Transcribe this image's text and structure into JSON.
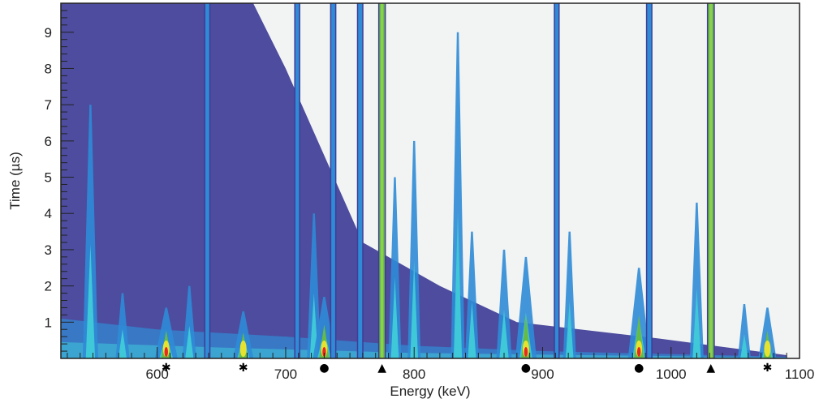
{
  "chart_data": {
    "type": "heatmap",
    "title": "",
    "xlabel": "Energy (keV)",
    "ylabel": "Time (µs)",
    "xlim": [
      525,
      1100
    ],
    "ylim": [
      0,
      9.8
    ],
    "x_ticks": [
      600,
      700,
      800,
      900,
      1000,
      1100
    ],
    "x_tick_labels": [
      "600",
      "700",
      "800",
      "900",
      "1000",
      "1100"
    ],
    "y_ticks": [
      1,
      2,
      3,
      4,
      5,
      6,
      7,
      8,
      9
    ],
    "y_tick_labels": [
      "1",
      "2",
      "3",
      "4",
      "5",
      "6",
      "7",
      "8",
      "9"
    ],
    "grid": false,
    "colors": {
      "background": "#f2f4f4",
      "low": "#3f3d96",
      "mid": "#2f8bd6",
      "cyan": "#3fc8d8",
      "green": "#66bb46",
      "yellow": "#e6e330",
      "red": "#e42826"
    },
    "peaks": [
      {
        "energy": 548,
        "height": 7.0,
        "intensity": 0.55
      },
      {
        "energy": 573,
        "height": 1.8,
        "intensity": 0.45
      },
      {
        "energy": 607,
        "height": 1.4,
        "intensity": 1.0
      },
      {
        "energy": 625,
        "height": 2.0,
        "intensity": 0.45
      },
      {
        "energy": 639,
        "height": 9.8,
        "intensity": 0.55
      },
      {
        "energy": 667,
        "height": 1.3,
        "intensity": 0.85
      },
      {
        "energy": 709,
        "height": 9.8,
        "intensity": 0.5
      },
      {
        "energy": 722,
        "height": 4.0,
        "intensity": 0.45
      },
      {
        "energy": 730,
        "height": 1.7,
        "intensity": 1.0
      },
      {
        "energy": 737,
        "height": 9.8,
        "intensity": 0.55
      },
      {
        "energy": 758,
        "height": 9.8,
        "intensity": 0.6
      },
      {
        "energy": 775,
        "height": 9.8,
        "intensity": 0.9
      },
      {
        "energy": 785,
        "height": 5.0,
        "intensity": 0.4
      },
      {
        "energy": 800,
        "height": 6.0,
        "intensity": 0.4
      },
      {
        "energy": 834,
        "height": 9.0,
        "intensity": 0.45
      },
      {
        "energy": 845,
        "height": 3.5,
        "intensity": 0.45
      },
      {
        "energy": 870,
        "height": 3.0,
        "intensity": 0.55
      },
      {
        "energy": 887,
        "height": 2.8,
        "intensity": 0.9
      },
      {
        "energy": 911,
        "height": 9.8,
        "intensity": 0.45
      },
      {
        "energy": 921,
        "height": 3.5,
        "intensity": 0.4
      },
      {
        "energy": 975,
        "height": 2.5,
        "intensity": 0.95
      },
      {
        "energy": 983,
        "height": 9.8,
        "intensity": 0.6
      },
      {
        "energy": 1020,
        "height": 4.3,
        "intensity": 0.45
      },
      {
        "energy": 1031,
        "height": 9.8,
        "intensity": 0.95
      },
      {
        "energy": 1057,
        "height": 1.5,
        "intensity": 0.4
      },
      {
        "energy": 1075,
        "height": 1.4,
        "intensity": 0.7
      }
    ],
    "annotations": [
      {
        "energy": 607,
        "symbol": "*",
        "label": "✱"
      },
      {
        "energy": 667,
        "symbol": "*",
        "label": "✱"
      },
      {
        "energy": 730,
        "symbol": "circle",
        "label": "●"
      },
      {
        "energy": 775,
        "symbol": "triangle",
        "label": "▲"
      },
      {
        "energy": 887,
        "symbol": "circle",
        "label": "●"
      },
      {
        "energy": 975,
        "symbol": "circle",
        "label": "●"
      },
      {
        "energy": 1031,
        "symbol": "triangle",
        "label": "▲"
      },
      {
        "energy": 1075,
        "symbol": "*",
        "label": "✱"
      }
    ]
  }
}
